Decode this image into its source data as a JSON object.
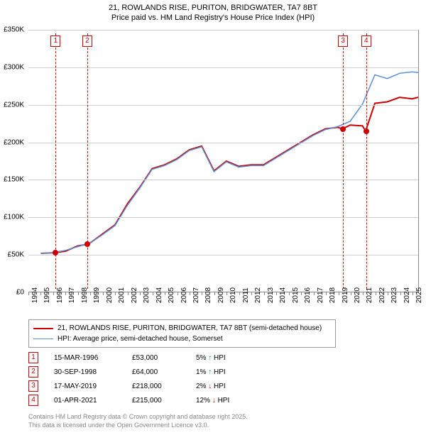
{
  "title_line1": "21, ROWLANDS RISE, PURITON, BRIDGWATER, TA7 8BT",
  "title_line2": "Price paid vs. HM Land Registry's House Price Index (HPI)",
  "title_fontsize": 11,
  "chart": {
    "type": "line",
    "background_color": "#ffffff",
    "grid_color": "#d0d0d0",
    "axis_color": "#888888",
    "x_years": [
      1994,
      1995,
      1996,
      1997,
      1998,
      1999,
      2000,
      2001,
      2002,
      2003,
      2004,
      2005,
      2006,
      2007,
      2008,
      2009,
      2010,
      2011,
      2012,
      2013,
      2014,
      2015,
      2016,
      2017,
      2018,
      2019,
      2020,
      2021,
      2022,
      2023,
      2024,
      2025
    ],
    "x_min": 1994,
    "x_max": 2025.5,
    "y_ticks": [
      0,
      50000,
      100000,
      150000,
      200000,
      250000,
      300000,
      350000
    ],
    "y_tick_labels": [
      "£0",
      "£50K",
      "£100K",
      "£150K",
      "£200K",
      "£250K",
      "£300K",
      "£350K"
    ],
    "y_min": 0,
    "y_max": 350000,
    "tick_fontsize": 10,
    "series": [
      {
        "name": "property",
        "label": "21, ROWLANDS RISE, PURITON, BRIDGWATER, TA7 8BT (semi-detached house)",
        "color": "#cc0000",
        "line_width": 2,
        "x": [
          1995,
          1996.2,
          1997,
          1998,
          1998.75,
          1999,
          2000,
          2001,
          2002,
          2003,
          2004,
          2005,
          2006,
          2007,
          2008,
          2009,
          2010,
          2011,
          2012,
          2013,
          2014,
          2015,
          2016,
          2017,
          2018,
          2019,
          2019.38,
          2020,
          2021,
          2021.25,
          2022,
          2023,
          2024,
          2025,
          2025.5
        ],
        "y": [
          52000,
          53000,
          55000,
          62000,
          64000,
          66000,
          78000,
          90000,
          118000,
          140000,
          165000,
          170000,
          178000,
          190000,
          195000,
          162000,
          175000,
          168000,
          170000,
          170000,
          180000,
          190000,
          200000,
          210000,
          218000,
          220000,
          218000,
          223000,
          222000,
          215000,
          252000,
          254000,
          260000,
          258000,
          260000
        ]
      },
      {
        "name": "hpi",
        "label": "HPI: Average price, semi-detached house, Somerset",
        "color": "#5b8fd6",
        "line_width": 1.5,
        "x": [
          1995,
          1996,
          1997,
          1998,
          1999,
          2000,
          2001,
          2002,
          2003,
          2004,
          2005,
          2006,
          2007,
          2008,
          2009,
          2010,
          2011,
          2012,
          2013,
          2014,
          2015,
          2016,
          2017,
          2018,
          2019,
          2020,
          2021,
          2022,
          2023,
          2024,
          2025,
          2025.5
        ],
        "y": [
          52000,
          53000,
          56000,
          61000,
          66000,
          77000,
          89000,
          116000,
          139000,
          164000,
          169000,
          177000,
          189000,
          194000,
          161000,
          174000,
          167000,
          169000,
          169000,
          179000,
          189000,
          199000,
          209000,
          217000,
          221000,
          228000,
          251000,
          290000,
          285000,
          292000,
          294000,
          293000
        ]
      }
    ],
    "markers": [
      {
        "id": "1",
        "x": 1996.2,
        "y": 53000,
        "color": "#cc0000"
      },
      {
        "id": "2",
        "x": 1998.75,
        "y": 64000,
        "color": "#cc0000"
      },
      {
        "id": "3",
        "x": 2019.38,
        "y": 218000,
        "color": "#cc0000"
      },
      {
        "id": "4",
        "x": 2021.25,
        "y": 215000,
        "color": "#cc0000"
      }
    ],
    "marker_box_y_offset_top": 8
  },
  "legend": {
    "border_color": "#999999",
    "fontsize": 10
  },
  "sales": [
    {
      "id": "1",
      "date": "15-MAR-1996",
      "price": "£53,000",
      "delta_pct": "5%",
      "direction": "up",
      "ref": "HPI",
      "color": "#cc0000",
      "arrow_color": "#009933"
    },
    {
      "id": "2",
      "date": "30-SEP-1998",
      "price": "£64,000",
      "delta_pct": "1%",
      "direction": "up",
      "ref": "HPI",
      "color": "#cc0000",
      "arrow_color": "#009933"
    },
    {
      "id": "3",
      "date": "17-MAY-2019",
      "price": "£218,000",
      "delta_pct": "2%",
      "direction": "down",
      "ref": "HPI",
      "color": "#cc0000",
      "arrow_color": "#cc0000"
    },
    {
      "id": "4",
      "date": "01-APR-2021",
      "price": "£215,000",
      "delta_pct": "12%",
      "direction": "down",
      "ref": "HPI",
      "color": "#cc0000",
      "arrow_color": "#cc0000"
    }
  ],
  "footer_line1": "Contains HM Land Registry data © Crown copyright and database right 2025.",
  "footer_line2": "This data is licensed under the Open Government Licence v3.0.",
  "footer_color": "#888888"
}
